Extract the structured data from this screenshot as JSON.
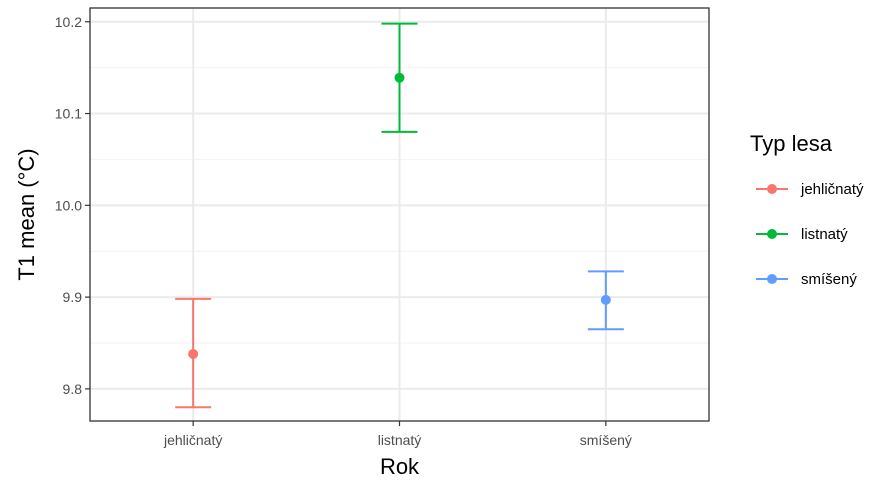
{
  "chart_data": {
    "type": "errorbar",
    "xlabel": "Rok",
    "ylabel": "T1 mean (°C)",
    "categories": [
      "jehličnatý",
      "listnatý",
      "smíšený"
    ],
    "y_ticks": [
      "9.8",
      "9.9",
      "10.0",
      "10.1",
      "10.2"
    ],
    "ylim": [
      9.765,
      10.215
    ],
    "grid": true,
    "legend": {
      "title": "Typ lesa",
      "position": "right"
    },
    "series": [
      {
        "name": "jehličnatý",
        "color": "#F8766D",
        "mean": 9.838,
        "lower": 9.78,
        "upper": 9.898
      },
      {
        "name": "listnatý",
        "color": "#00BA38",
        "mean": 10.139,
        "lower": 10.08,
        "upper": 10.198
      },
      {
        "name": "smíšený",
        "color": "#619CFF",
        "mean": 9.897,
        "lower": 9.865,
        "upper": 9.928
      }
    ]
  }
}
